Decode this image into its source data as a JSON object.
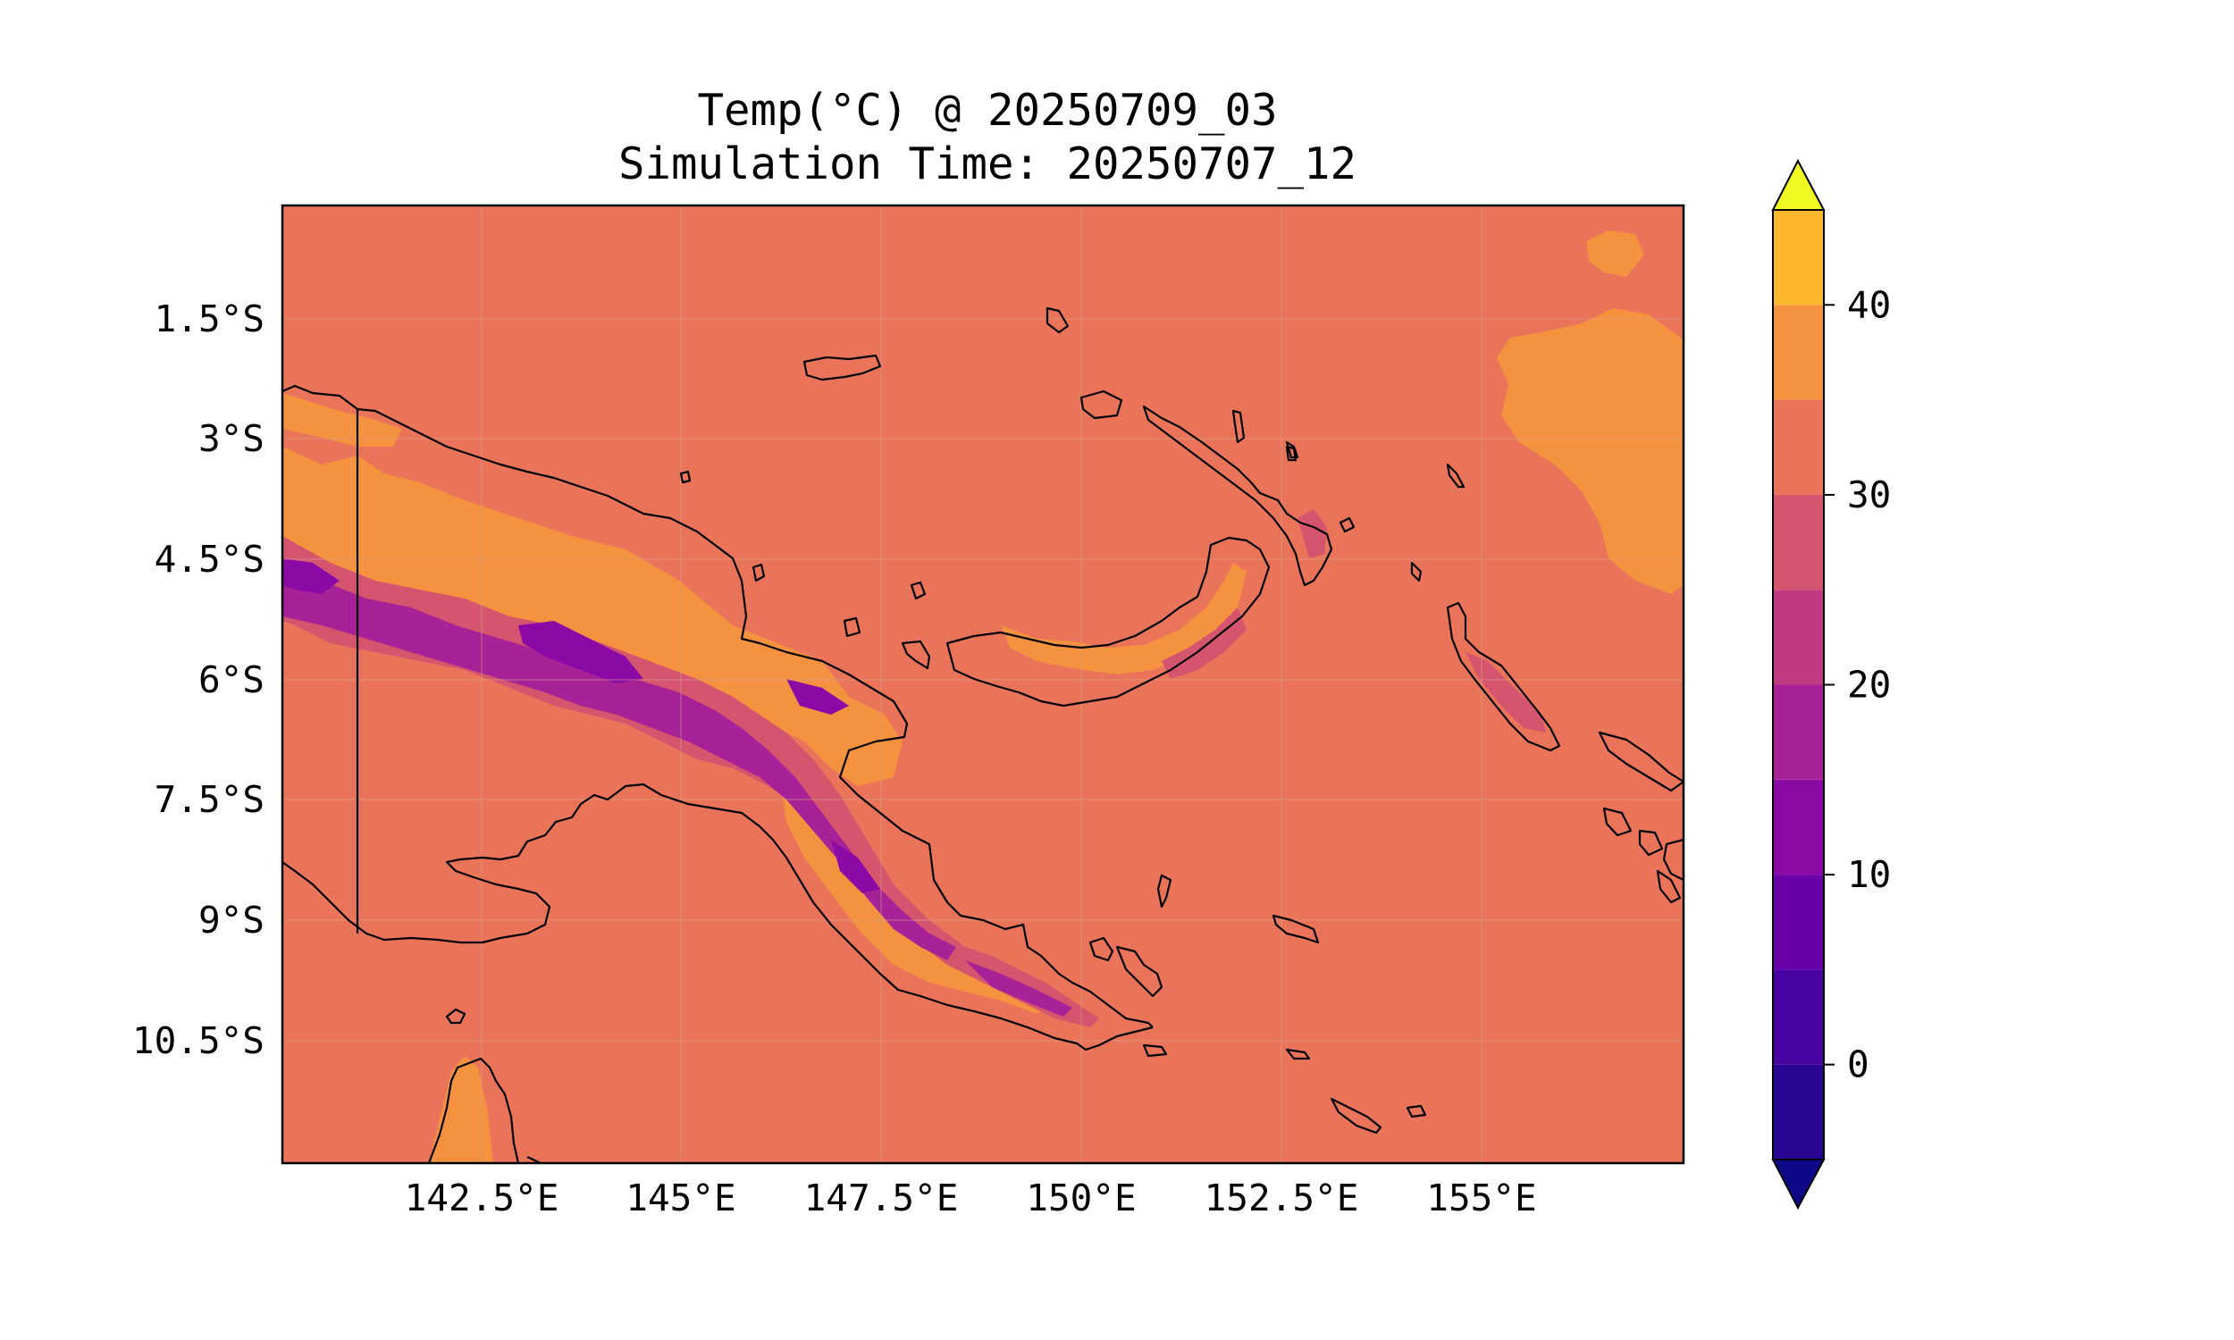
{
  "title": {
    "line1": "Temp(°C) @ 20250709_03",
    "line2": "Simulation Time: 20250707_12"
  },
  "map": {
    "x_ticks": [
      "142.5°E",
      "145°E",
      "147.5°E",
      "150°E",
      "152.5°E",
      "155°E"
    ],
    "y_ticks": [
      "1.5°S",
      "3°S",
      "4.5°S",
      "6°S",
      "7.5°S",
      "9°S",
      "10.5°S"
    ],
    "background_fill": "#e9745a",
    "warm_fill": "#f5923f",
    "coastline_color": "#000000"
  },
  "colorbar": {
    "ticks": [
      "0",
      "10",
      "20",
      "30",
      "40"
    ],
    "under_color": "#0d0887",
    "over_color": "#f0f921",
    "bands": [
      {
        "from": -5,
        "to": 0,
        "color": "#2a0693"
      },
      {
        "from": 0,
        "to": 5,
        "color": "#4903a0"
      },
      {
        "from": 5,
        "to": 10,
        "color": "#6900a8"
      },
      {
        "from": 10,
        "to": 15,
        "color": "#8b0aa5"
      },
      {
        "from": 15,
        "to": 20,
        "color": "#a72197"
      },
      {
        "from": 20,
        "to": 25,
        "color": "#c13b82"
      },
      {
        "from": 25,
        "to": 30,
        "color": "#d5546e"
      },
      {
        "from": 30,
        "to": 35,
        "color": "#e9745a"
      },
      {
        "from": 35,
        "to": 40,
        "color": "#f5923f"
      },
      {
        "from": 40,
        "to": 45,
        "color": "#fdb72d"
      }
    ]
  }
}
